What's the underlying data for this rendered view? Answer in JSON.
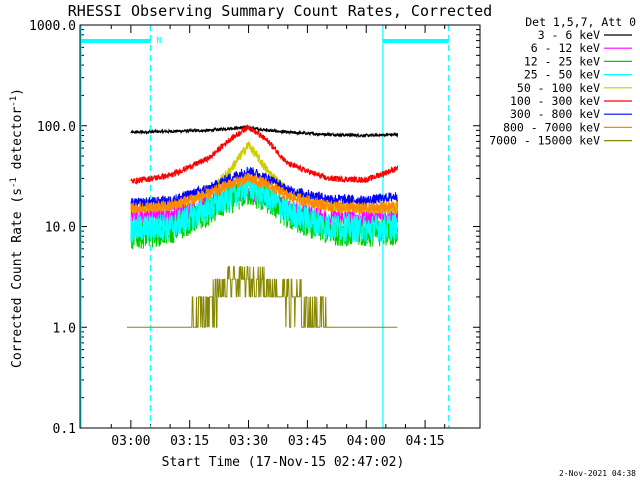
{
  "chart_data": {
    "type": "line",
    "title": "RHESSI Observing Summary Count Rates, Corrected",
    "xlabel": "Start Time (17-Nov-15 02:47:02)",
    "ylabel": "Corrected Count Rate (s⁻¹ detector⁻¹)",
    "ylabel_parts": {
      "pre": "Corrected Count Rate (s",
      "mid": " detector",
      "sup": "-1",
      "post": ")"
    },
    "yscale": "log",
    "ylim": [
      0.1,
      1000.0
    ],
    "xlim": [
      "02:47:02",
      "04:29:00"
    ],
    "x_ticks": [
      "03:00",
      "03:15",
      "03:30",
      "03:45",
      "04:00",
      "04:15"
    ],
    "y_ticks": [
      "0.1",
      "1.0",
      "10.0",
      "100.0",
      "1000.0"
    ],
    "legend_header": "Det 1,5,7, Att 0",
    "legend_position": "top-right, outside plot",
    "series": [
      {
        "name": "3 - 6 keV",
        "color": "#000000",
        "x": [
          "03:00",
          "03:10",
          "03:20",
          "03:25",
          "03:30",
          "03:35",
          "03:40",
          "03:50",
          "04:00",
          "04:08"
        ],
        "values": [
          86,
          88,
          90,
          94,
          96,
          90,
          86,
          82,
          80,
          82
        ]
      },
      {
        "name": "6 - 12 keV",
        "color": "#ff00ff",
        "x": [
          "03:00",
          "03:10",
          "03:20",
          "03:25",
          "03:30",
          "03:35",
          "03:40",
          "03:50",
          "04:00",
          "04:08"
        ],
        "values": [
          13,
          13,
          17,
          20,
          22,
          19,
          15,
          12,
          12,
          13
        ]
      },
      {
        "name": "12 - 25 keV",
        "color": "#00cc00",
        "x": [
          "03:00",
          "03:10",
          "03:20",
          "03:25",
          "03:30",
          "03:35",
          "03:40",
          "03:50",
          "04:00",
          "04:08"
        ],
        "values": [
          8,
          9,
          14,
          18,
          22,
          18,
          13,
          9,
          8.5,
          9
        ]
      },
      {
        "name": "25 - 50 keV",
        "color": "#00ffff",
        "x": [
          "03:00",
          "03:10",
          "03:20",
          "03:25",
          "03:30",
          "03:35",
          "03:40",
          "03:50",
          "04:00",
          "04:08"
        ],
        "values": [
          9.5,
          10,
          15,
          20,
          25,
          20,
          14,
          10,
          9.5,
          10
        ]
      },
      {
        "name": "50 - 100 keV",
        "color": "#cccc00",
        "x": [
          "03:00",
          "03:10",
          "03:20",
          "03:25",
          "03:30",
          "03:35",
          "03:40",
          "03:50",
          "04:00",
          "04:08"
        ],
        "values": [
          15,
          16,
          22,
          35,
          65,
          35,
          22,
          16,
          15,
          15
        ]
      },
      {
        "name": "100 - 300 keV",
        "color": "#ff0000",
        "x": [
          "03:00",
          "03:10",
          "03:20",
          "03:25",
          "03:30",
          "03:35",
          "03:40",
          "03:50",
          "04:00",
          "04:08"
        ],
        "values": [
          28,
          32,
          48,
          72,
          98,
          70,
          42,
          30,
          29,
          38
        ]
      },
      {
        "name": "300 - 800 keV",
        "color": "#0000ff",
        "x": [
          "03:00",
          "03:10",
          "03:20",
          "03:25",
          "03:30",
          "03:35",
          "03:40",
          "03:50",
          "04:00",
          "04:08"
        ],
        "values": [
          17,
          18,
          24,
          30,
          36,
          30,
          23,
          19,
          18,
          20
        ]
      },
      {
        "name": "800 - 7000 keV",
        "color": "#ff8800",
        "x": [
          "03:00",
          "03:10",
          "03:20",
          "03:25",
          "03:30",
          "03:35",
          "03:40",
          "03:50",
          "04:00",
          "04:08"
        ],
        "values": [
          15,
          16,
          21,
          26,
          30,
          26,
          20,
          16,
          15,
          16
        ]
      },
      {
        "name": "7000 - 15000 keV",
        "color": "#888800",
        "x": [
          "02:59",
          "03:15",
          "03:21",
          "03:24",
          "03:27",
          "03:30",
          "03:33",
          "03:36",
          "03:40",
          "03:45",
          "03:52",
          "04:00",
          "04:08"
        ],
        "values": [
          1.0,
          1.0,
          2.0,
          2.5,
          3.0,
          3.0,
          3.0,
          2.5,
          2.0,
          1.5,
          1.0,
          1.0,
          1.0
        ]
      }
    ],
    "intervals": {
      "color": "#00ffff",
      "night": [
        [
          "02:47:02",
          "03:05"
        ],
        [
          "04:04",
          "04:21"
        ]
      ],
      "saa_marker_label": "N",
      "dashed_lines": [
        "03:05",
        "04:21"
      ],
      "solid_lines": [
        "02:47:02",
        "04:04"
      ]
    }
  },
  "footer": {
    "date_label": "2-Nov-2021 04:38"
  }
}
